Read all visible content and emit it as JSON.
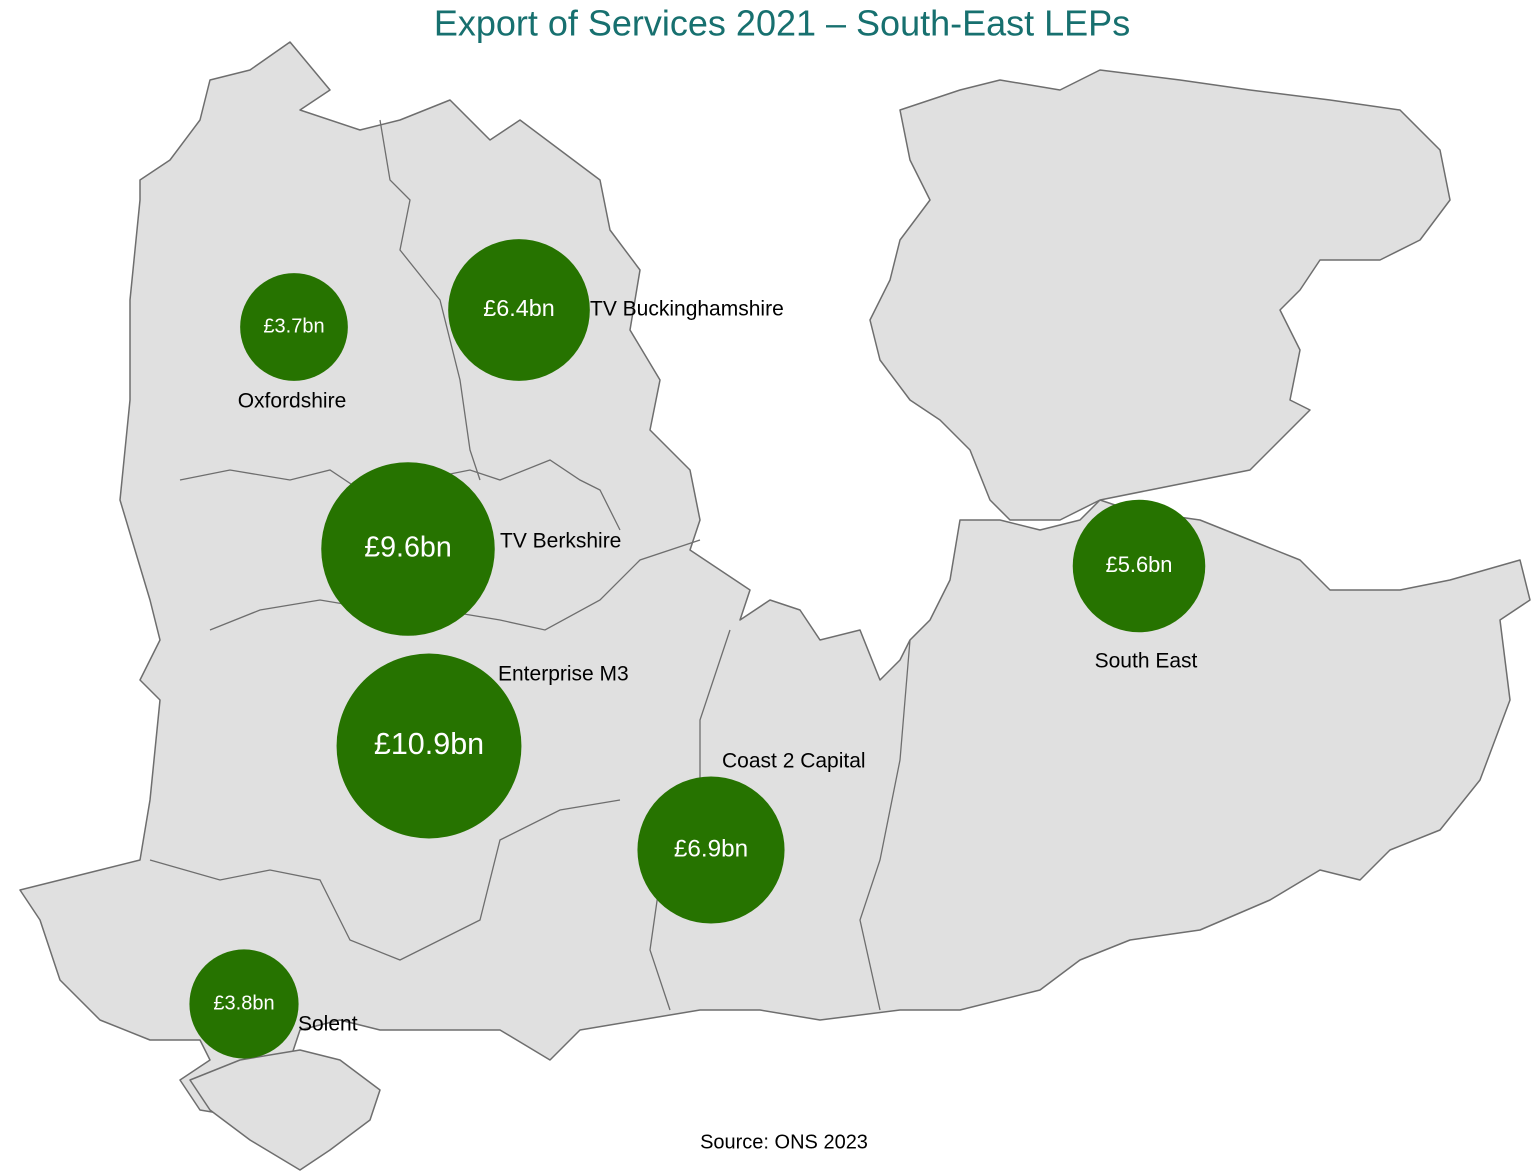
{
  "title": "Export of Services 2021 – South-East LEPs",
  "source": "Source: ONS 2023",
  "regions": [
    {
      "name": "Oxfordshire",
      "value": 3.7,
      "value_label": "£3.7bn"
    },
    {
      "name": "TV Buckinghamshire",
      "value": 6.4,
      "value_label": "£6.4bn"
    },
    {
      "name": "TV Berkshire",
      "value": 9.6,
      "value_label": "£9.6bn"
    },
    {
      "name": "Enterprise M3",
      "value": 10.9,
      "value_label": "£10.9bn"
    },
    {
      "name": "Coast 2 Capital",
      "value": 6.9,
      "value_label": "£6.9bn"
    },
    {
      "name": "South East",
      "value": 5.6,
      "value_label": "£5.6bn"
    },
    {
      "name": "Solent",
      "value": 3.8,
      "value_label": "£3.8bn"
    }
  ]
}
